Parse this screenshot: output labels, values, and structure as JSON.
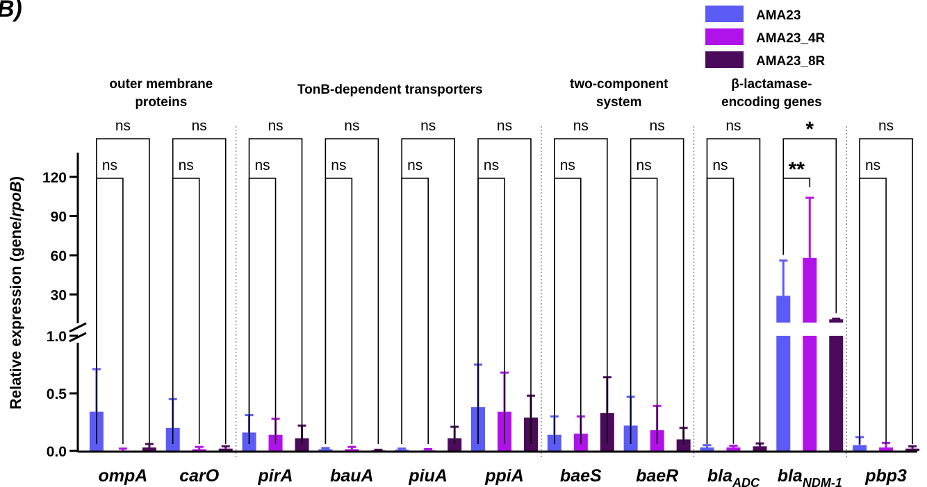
{
  "panel_label": "B)",
  "colors": {
    "series": [
      "#5b5bf6",
      "#b012ea",
      "#4b0a5a"
    ],
    "axis": "#000000",
    "divider": "#666666"
  },
  "chart_data": {
    "type": "bar",
    "title": "",
    "ylabel_main": "Relative expression (gene/",
    "ylabel_italic": "rpoB",
    "ylabel_end": ")",
    "axis_break": true,
    "y_lower": {
      "range": [
        0,
        1.0
      ],
      "ticks": [
        0.0,
        0.5,
        1.0
      ],
      "tick_labels": [
        "0.0",
        "0.5",
        "1.0"
      ]
    },
    "y_upper": {
      "range": [
        0,
        130
      ],
      "ticks": [
        30,
        60,
        90,
        120
      ],
      "tick_labels": [
        "30",
        "60",
        "90",
        "120"
      ]
    },
    "legend_position": "top-right",
    "series": [
      {
        "name": "AMA23"
      },
      {
        "name": "AMA23_4R"
      },
      {
        "name": "AMA23_8R"
      }
    ],
    "groups": [
      {
        "label": "ompA",
        "sub": "",
        "values": [
          0.34,
          0.0,
          0.03
        ],
        "errors": [
          0.37,
          0.02,
          0.03
        ],
        "sig_top": "ns",
        "sig_inner": "ns"
      },
      {
        "label": "carO",
        "sub": "",
        "values": [
          0.2,
          0.015,
          0.02
        ],
        "errors": [
          0.25,
          0.02,
          0.02
        ],
        "sig_top": "ns",
        "sig_inner": "ns"
      },
      {
        "label": "pirA",
        "sub": "",
        "values": [
          0.16,
          0.14,
          0.11
        ],
        "errors": [
          0.15,
          0.14,
          0.11
        ],
        "sig_top": "ns",
        "sig_inner": "ns"
      },
      {
        "label": "bauA",
        "sub": "",
        "values": [
          0.015,
          0.015,
          0.005
        ],
        "errors": [
          0.01,
          0.02,
          0.005
        ],
        "sig_top": "ns",
        "sig_inner": "ns"
      },
      {
        "label": "piuA",
        "sub": "",
        "values": [
          0.01,
          0.005,
          0.11
        ],
        "errors": [
          0.01,
          0.01,
          0.1
        ],
        "sig_top": "ns",
        "sig_inner": "ns"
      },
      {
        "label": "ppiA",
        "sub": "",
        "values": [
          0.38,
          0.34,
          0.29
        ],
        "errors": [
          0.37,
          0.34,
          0.19
        ],
        "sig_top": "ns",
        "sig_inner": "ns"
      },
      {
        "label": "baeS",
        "sub": "",
        "values": [
          0.14,
          0.15,
          0.33
        ],
        "errors": [
          0.16,
          0.15,
          0.31
        ],
        "sig_top": "ns",
        "sig_inner": "ns"
      },
      {
        "label": "baeR",
        "sub": "",
        "values": [
          0.22,
          0.18,
          0.1
        ],
        "errors": [
          0.25,
          0.21,
          0.1
        ],
        "sig_top": "ns",
        "sig_inner": "ns"
      },
      {
        "label": "bla",
        "sub": "ADC",
        "values": [
          0.03,
          0.03,
          0.04
        ],
        "errors": [
          0.02,
          0.015,
          0.025
        ],
        "sig_top": "ns",
        "sig_inner": "ns"
      },
      {
        "label": "bla",
        "sub": "NDM-1",
        "values": [
          29,
          58,
          11
        ],
        "errors": [
          27,
          46,
          0.5
        ],
        "broken": true,
        "sig_top": "*",
        "sig_inner": "**"
      },
      {
        "label": "pbp3",
        "sub": "",
        "values": [
          0.05,
          0.03,
          0.02
        ],
        "errors": [
          0.07,
          0.04,
          0.02
        ],
        "sig_top": "ns",
        "sig_inner": "ns"
      }
    ],
    "categories": [
      {
        "label": "outer membrane proteins",
        "lines": [
          "outer membrane",
          "proteins"
        ],
        "groups": [
          0,
          1
        ]
      },
      {
        "label": "TonB-dependent transporters",
        "lines": [
          "TonB-dependent transporters"
        ],
        "groups": [
          2,
          3,
          4,
          5
        ]
      },
      {
        "label": "two-component system",
        "lines": [
          "two-component",
          "system"
        ],
        "groups": [
          6,
          7
        ]
      },
      {
        "label": "β-lactamase-encoding genes",
        "lines": [
          "β-lactamase-",
          "encoding genes"
        ],
        "groups": [
          8,
          9
        ]
      },
      {
        "label": "",
        "lines": [],
        "groups": [
          10
        ]
      }
    ]
  }
}
